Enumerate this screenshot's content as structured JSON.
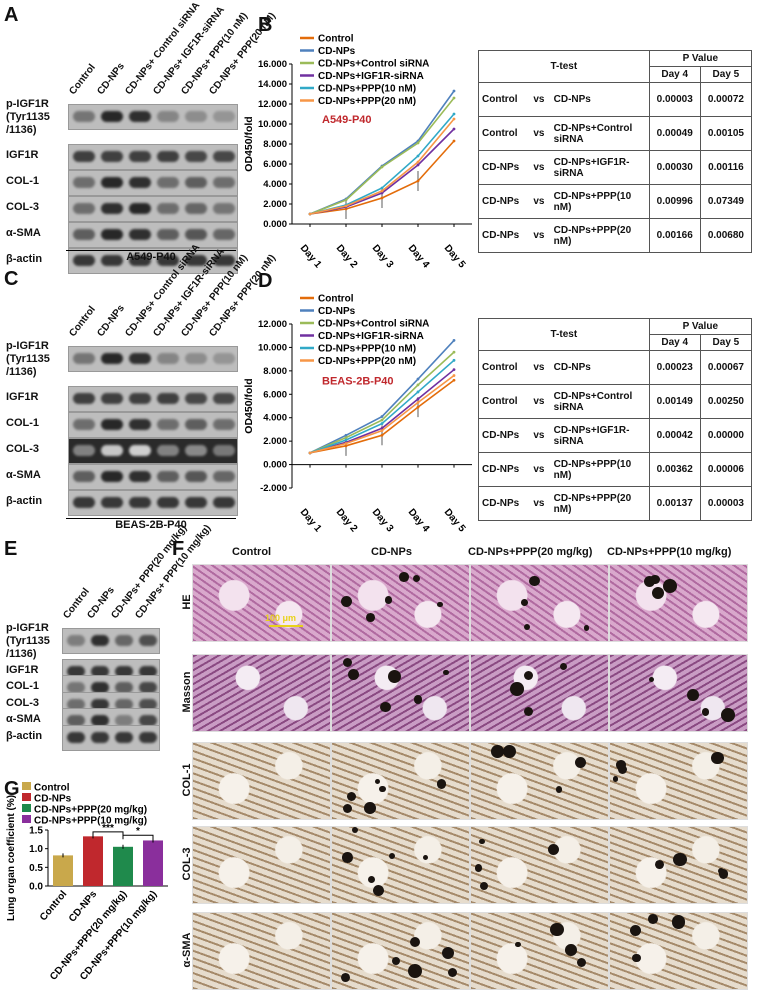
{
  "panels": {
    "A": {
      "letter": "A",
      "lanes": [
        "Control",
        "CD-NPs",
        "CD-NPs+ Control siRNA",
        "CD-NPs+ IGF1R-siRNA",
        "CD-NPs+ PPP(10 nM)",
        "CD-NPs+ PPP(20 nM)"
      ],
      "rows": [
        "p-IGF1R (Tyr1135 /1136)",
        "IGF1R",
        "COL-1",
        "COL-3",
        "α-SMA",
        "β-actin"
      ],
      "caption": "A549-P40"
    },
    "B": {
      "letter": "B",
      "table": {
        "header": "T-test",
        "pvalue": "P Value",
        "day4": "Day 4",
        "day5": "Day 5",
        "rows": [
          {
            "a": "Control",
            "vs": "vs",
            "b": "CD-NPs",
            "d4": "0.00003",
            "d5": "0.00072"
          },
          {
            "a": "Control",
            "vs": "vs",
            "b": "CD-NPs+Control siRNA",
            "d4": "0.00049",
            "d5": "0.00105"
          },
          {
            "a": "CD-NPs",
            "vs": "vs",
            "b": "CD-NPs+IGF1R-siRNA",
            "d4": "0.00030",
            "d5": "0.00116"
          },
          {
            "a": "CD-NPs",
            "vs": "vs",
            "b": "CD-NPs+PPP(10 nM)",
            "d4": "0.00996",
            "d5": "0.07349"
          },
          {
            "a": "CD-NPs",
            "vs": "vs",
            "b": "CD-NPs+PPP(20 nM)",
            "d4": "0.00166",
            "d5": "0.00680"
          }
        ]
      }
    },
    "C": {
      "letter": "C",
      "lanes": [
        "Control",
        "CD-NPs",
        "CD-NPs+ Control siRNA",
        "CD-NPs+ IGF1R-siRNA",
        "CD-NPs+ PPP(10 nM)",
        "CD-NPs+ PPP(20 nM)"
      ],
      "rows": [
        "p-IGF1R (Tyr1135 /1136)",
        "IGF1R",
        "COL-1",
        "COL-3",
        "α-SMA",
        "β-actin"
      ],
      "caption": "BEAS-2B-P40"
    },
    "D": {
      "letter": "D",
      "table": {
        "header": "T-test",
        "pvalue": "P Value",
        "day4": "Day 4",
        "day5": "Day 5",
        "rows": [
          {
            "a": "Control",
            "vs": "vs",
            "b": "CD-NPs",
            "d4": "0.00023",
            "d5": "0.00067"
          },
          {
            "a": "Control",
            "vs": "vs",
            "b": "CD-NPs+Control siRNA",
            "d4": "0.00149",
            "d5": "0.00250"
          },
          {
            "a": "CD-NPs",
            "vs": "vs",
            "b": "CD-NPs+IGF1R-siRNA",
            "d4": "0.00042",
            "d5": "0.00000"
          },
          {
            "a": "CD-NPs",
            "vs": "vs",
            "b": "CD-NPs+PPP(10 nM)",
            "d4": "0.00362",
            "d5": "0.00006"
          },
          {
            "a": "CD-NPs",
            "vs": "vs",
            "b": "CD-NPs+PPP(20 nM)",
            "d4": "0.00137",
            "d5": "0.00003"
          }
        ]
      }
    },
    "E": {
      "letter": "E",
      "lanes": [
        "Control",
        "CD-NPs",
        "CD-NPs+ PPP(20 mg/kg)",
        "CD-NPs+ PPP(10 mg/kg)"
      ],
      "rows": [
        "p-IGF1R (Tyr1135 /1136)",
        "IGF1R",
        "COL-1",
        "COL-3",
        "α-SMA",
        "β-actin"
      ]
    },
    "F": {
      "letter": "F",
      "columns": [
        "Control",
        "CD-NPs",
        "CD-NPs+PPP(20 mg/kg)",
        "CD-NPs+PPP(10 mg/kg)"
      ],
      "rows": [
        "HE",
        "Masson",
        "COL-1",
        "COL-3",
        "α-SMA"
      ],
      "scale_bar": "100 μm"
    },
    "G": {
      "letter": "G"
    }
  },
  "chart_data": [
    {
      "type": "line",
      "panel": "B",
      "annotation": "A549-P40",
      "ylabel": "OD450/fold",
      "x": [
        "Day 1",
        "Day 2",
        "Day 3",
        "Day 4",
        "Day 5"
      ],
      "ylim": [
        0,
        16
      ],
      "yticks": [
        "0.000",
        "2.000",
        "4.000",
        "6.000",
        "8.000",
        "10.000",
        "12.000",
        "14.000",
        "16.000"
      ],
      "series": [
        {
          "name": "Control",
          "color": "#e36c0a",
          "values": [
            1.0,
            1.5,
            2.6,
            4.3,
            8.3
          ]
        },
        {
          "name": "CD-NPs",
          "color": "#4f81bd",
          "values": [
            1.0,
            2.5,
            5.8,
            8.3,
            13.3
          ]
        },
        {
          "name": "CD-NPs+Control siRNA",
          "color": "#9bbb59",
          "values": [
            1.0,
            2.4,
            5.7,
            8.1,
            12.6
          ]
        },
        {
          "name": "CD-NPs+IGF1R-siRNA",
          "color": "#7030a0",
          "values": [
            1.0,
            1.7,
            3.1,
            5.9,
            9.5
          ]
        },
        {
          "name": "CD-NPs+PPP(10 nM)",
          "color": "#31a9c7",
          "values": [
            1.0,
            1.9,
            3.6,
            6.8,
            11.0
          ]
        },
        {
          "name": "CD-NPs+PPP(20 nM)",
          "color": "#f79646",
          "values": [
            1.0,
            1.8,
            3.3,
            6.2,
            10.5
          ]
        }
      ]
    },
    {
      "type": "line",
      "panel": "D",
      "annotation": "BEAS-2B-P40",
      "ylabel": "OD450/fold",
      "x": [
        "Day 1",
        "Day 2",
        "Day 3",
        "Day 4",
        "Day 5"
      ],
      "ylim": [
        -2,
        12
      ],
      "yticks": [
        "-2.000",
        "0.000",
        "2.000",
        "4.000",
        "6.000",
        "8.000",
        "10.000",
        "12.000"
      ],
      "series": [
        {
          "name": "Control",
          "color": "#e36c0a",
          "values": [
            1.0,
            1.6,
            2.5,
            4.9,
            7.2
          ]
        },
        {
          "name": "CD-NPs",
          "color": "#4f81bd",
          "values": [
            1.0,
            2.5,
            4.1,
            7.3,
            10.6
          ]
        },
        {
          "name": "CD-NPs+Control siRNA",
          "color": "#9bbb59",
          "values": [
            1.0,
            2.3,
            3.8,
            6.8,
            9.6
          ]
        },
        {
          "name": "CD-NPs+IGF1R-siRNA",
          "color": "#7030a0",
          "values": [
            1.0,
            1.9,
            3.1,
            5.6,
            8.1
          ]
        },
        {
          "name": "CD-NPs+PPP(10 nM)",
          "color": "#31a9c7",
          "values": [
            1.0,
            2.1,
            3.5,
            6.2,
            8.9
          ]
        },
        {
          "name": "CD-NPs+PPP(20 nM)",
          "color": "#f79646",
          "values": [
            1.0,
            1.8,
            2.9,
            5.3,
            7.6
          ]
        }
      ]
    },
    {
      "type": "bar",
      "panel": "G",
      "ylabel": "Lung organ coefficient (%)",
      "categories": [
        "Control",
        "CD-NPs",
        "CD-NPs+PPP(20 mg/kg)",
        "CD-NPs+PPP(10 mg/kg)"
      ],
      "values": [
        0.82,
        1.33,
        1.05,
        1.22
      ],
      "colors": [
        "#c9a84b",
        "#c0282d",
        "#1f8a4c",
        "#8a2f9c"
      ],
      "ylim": [
        0,
        1.5
      ],
      "yticks": [
        "0.0",
        "0.5",
        "1.0",
        "1.5"
      ],
      "significance": [
        "***",
        "*"
      ]
    }
  ]
}
